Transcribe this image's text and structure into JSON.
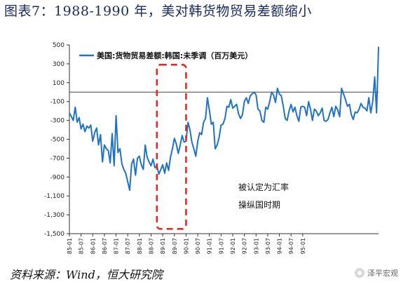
{
  "figure": {
    "title": "图表7：1988-1990 年，美对韩货物贸易差额缩小",
    "source": "资料来源：Wind，恒大研究院",
    "watermark": "泽平宏观",
    "series_color": "#1f73c4",
    "highlight_color": "#e8231a"
  },
  "chart_data": {
    "type": "line",
    "title": "",
    "xlabel": "",
    "ylabel": "",
    "ylim": [
      -1500,
      500
    ],
    "y_ticks": [
      500,
      300,
      100,
      -100,
      -300,
      -500,
      -700,
      -900,
      -1100,
      -1300,
      -1500
    ],
    "y_tick_labels": [
      "500",
      "300",
      "100",
      "-100",
      "-300",
      "-500",
      "-700",
      "-900",
      "-1,100",
      "-1,300",
      "-1,500"
    ],
    "x_tick_labels": [
      "85-01",
      "85-07",
      "86-01",
      "86-07",
      "87-01",
      "87-07",
      "88-01",
      "88-07",
      "89-01",
      "89-07",
      "90-01",
      "90-07",
      "91-01",
      "91-07",
      "92-01",
      "92-07",
      "93-01",
      "93-07",
      "94-01",
      "94-07",
      "95-01"
    ],
    "x_start": "1985-01",
    "legend": {
      "position": "top-left"
    },
    "grid": false,
    "series": [
      {
        "name": "美国:货物贸易差额:韩国:未季调（百万美元）",
        "values": [
          -220,
          -260,
          -300,
          -160,
          -320,
          -270,
          -390,
          -340,
          -420,
          -360,
          -380,
          -350,
          -520,
          -430,
          -380,
          -560,
          -450,
          -740,
          -560,
          -600,
          -620,
          -750,
          -440,
          -780,
          -250,
          -640,
          -600,
          -760,
          -820,
          -860,
          -950,
          -1040,
          -760,
          -710,
          -880,
          -700,
          -680,
          -770,
          -820,
          -560,
          -690,
          -740,
          -780,
          -710,
          -800,
          -780,
          -870,
          -820,
          -770,
          -860,
          -750,
          -830,
          -690,
          -600,
          -490,
          -550,
          -650,
          -560,
          -460,
          -530,
          -520,
          -320,
          -400,
          -530,
          -600,
          -680,
          -520,
          -430,
          -450,
          -320,
          -280,
          -60,
          -190,
          -340,
          -320,
          -600,
          -560,
          -480,
          -350,
          -340,
          -280,
          -150,
          -160,
          -80,
          -170,
          -150,
          -130,
          -230,
          -280,
          -240,
          -100,
          -60,
          -120,
          -40,
          -20,
          0,
          -30,
          -180,
          -200,
          -300,
          -320,
          -160,
          -180,
          -100,
          0,
          -30,
          -110,
          40,
          -20,
          -40,
          -150,
          -280,
          -300,
          -200,
          -130,
          -210,
          -160,
          -250,
          -310,
          -160,
          -150,
          -160,
          -250,
          -100,
          -180,
          -300,
          -180,
          -200,
          -250,
          -220,
          -170,
          -300,
          -310,
          -290,
          -220,
          -160,
          -260,
          -150,
          -190,
          -260,
          40,
          -20,
          -80,
          -150,
          -130,
          -240,
          -290,
          -210,
          -220,
          -180,
          -120,
          -160,
          -170,
          -200,
          -60,
          -220,
          -100,
          160,
          -220,
          480
        ]
      }
    ],
    "annotations": [
      {
        "type": "highlight-box",
        "x_range": [
          "1988-10",
          "1990-01"
        ],
        "y_range": [
          -1450,
          290
        ]
      },
      {
        "type": "text",
        "lines": [
          "被认定为汇率",
          "操纵国时期"
        ]
      }
    ]
  }
}
